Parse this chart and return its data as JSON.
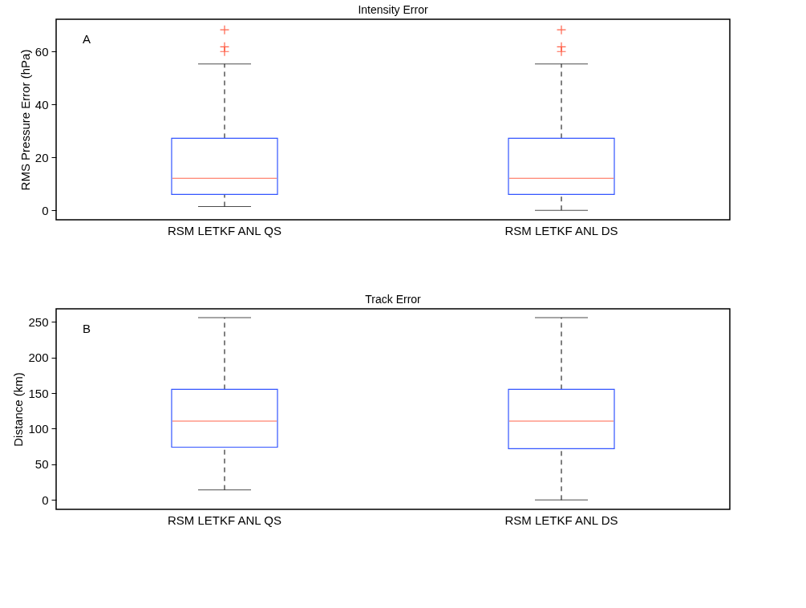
{
  "chart_data": [
    {
      "type": "box",
      "title": "Intensity Error",
      "ylabel": "RMS Pressure Error (hPa)",
      "categories": [
        "RSM LETKF ANL QS",
        "RSM LETKF ANL DS"
      ],
      "ylim": [
        -3.6,
        72.2
      ],
      "yticks": [
        0,
        20,
        40,
        60
      ],
      "annotations": [
        "A"
      ],
      "grid": false,
      "series": [
        {
          "color": "#3355ff",
          "boxes": [
            {
              "low": 1.4,
              "q1": 6.0,
              "median": 12.1,
              "q3": 27.2,
              "high": 55.3,
              "outliers": [
                60.0,
                61.8,
                68.2
              ]
            },
            {
              "low": 0.0,
              "q1": 6.0,
              "median": 12.1,
              "q3": 27.2,
              "high": 55.3,
              "outliers": [
                60.0,
                61.8,
                68.2
              ]
            }
          ]
        }
      ]
    },
    {
      "type": "box",
      "title": "Track Error",
      "ylabel": "Distance (km)",
      "categories": [
        "RSM LETKF ANL QS",
        "RSM LETKF ANL DS"
      ],
      "ylim": [
        -13.1,
        268.2
      ],
      "yticks": [
        0,
        50,
        100,
        150,
        200,
        250
      ],
      "annotations": [
        "B"
      ],
      "grid": false,
      "series": [
        {
          "color": "#3355ff",
          "boxes": [
            {
              "low": 14.2,
              "q1": 74.1,
              "median": 110.8,
              "q3": 155.2,
              "high": 255.8
            },
            {
              "low": 0.0,
              "q1": 72.0,
              "median": 110.8,
              "q3": 155.2,
              "high": 255.8
            }
          ]
        }
      ]
    }
  ]
}
